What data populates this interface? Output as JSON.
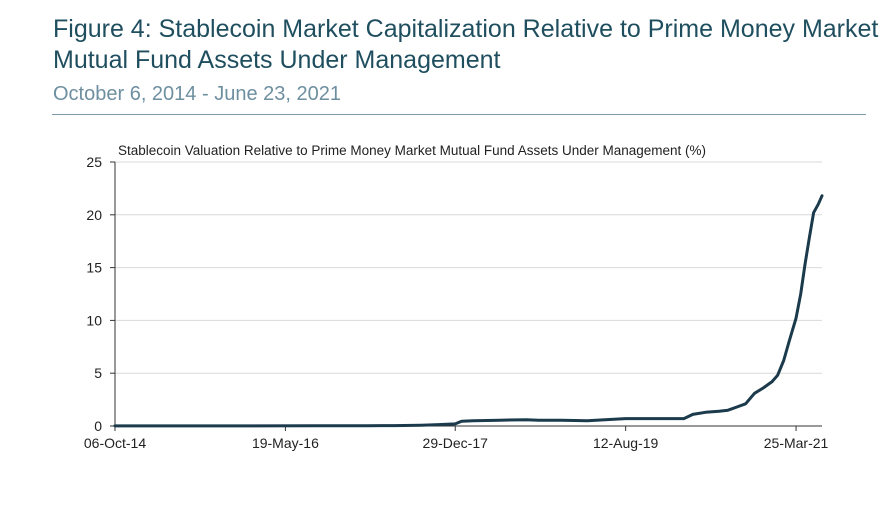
{
  "header": {
    "title": "Figure 4:  Stablecoin Market Capitalization Relative to Prime Money Market Mutual Fund Assets Under Management",
    "subtitle": "October 6, 2014 - June 23, 2021"
  },
  "colors": {
    "title": "#1f4e5f",
    "subtitle": "#6e8fa0",
    "line": "#1b3a4b",
    "grid": "#d9d9d9"
  },
  "chart_data": {
    "type": "line",
    "title": "Stablecoin Valuation Relative to Prime Money Market Mutual Fund Assets Under Management (%)",
    "xlabel": "",
    "ylabel": "",
    "ylim": [
      0,
      25
    ],
    "yticks": [
      0,
      5,
      10,
      15,
      20,
      25
    ],
    "xlim": [
      "2014-10-06",
      "2021-06-23"
    ],
    "xticks": [
      {
        "date": "2014-10-06",
        "label": "06-Oct-14"
      },
      {
        "date": "2016-05-19",
        "label": "19-May-16"
      },
      {
        "date": "2017-12-29",
        "label": "29-Dec-17"
      },
      {
        "date": "2019-08-12",
        "label": "12-Aug-19"
      },
      {
        "date": "2021-03-25",
        "label": "25-Mar-21"
      }
    ],
    "grid": true,
    "legend": "none",
    "series": [
      {
        "x": [
          "2014-10-06",
          "2015-06-01",
          "2016-01-01",
          "2016-09-01",
          "2017-03-01",
          "2017-06-01",
          "2017-09-01",
          "2017-11-01",
          "2017-12-29",
          "2018-01-20",
          "2018-03-01",
          "2018-06-01",
          "2018-09-01",
          "2018-10-15",
          "2019-01-01",
          "2019-04-01",
          "2019-06-01",
          "2019-08-12",
          "2019-11-01",
          "2020-01-15",
          "2020-03-01",
          "2020-04-01",
          "2020-05-15",
          "2020-07-01",
          "2020-08-01",
          "2020-09-01",
          "2020-10-01",
          "2020-11-01",
          "2020-12-01",
          "2021-01-01",
          "2021-01-20",
          "2021-02-10",
          "2021-03-01",
          "2021-03-25",
          "2021-04-10",
          "2021-04-25",
          "2021-05-10",
          "2021-05-25",
          "2021-06-10",
          "2021-06-23"
        ],
        "y": [
          0.01,
          0.01,
          0.01,
          0.02,
          0.03,
          0.04,
          0.08,
          0.13,
          0.2,
          0.45,
          0.5,
          0.55,
          0.6,
          0.55,
          0.55,
          0.5,
          0.6,
          0.7,
          0.7,
          0.7,
          0.7,
          1.1,
          1.3,
          1.4,
          1.5,
          1.8,
          2.1,
          3.1,
          3.6,
          4.2,
          4.8,
          6.2,
          8.0,
          10.2,
          12.5,
          15.3,
          17.8,
          20.2,
          21.0,
          21.8
        ]
      }
    ]
  }
}
